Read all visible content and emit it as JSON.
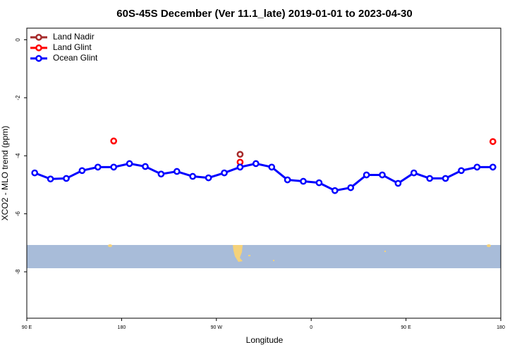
{
  "chart_data": {
    "type": "line",
    "title": "60S-45S December (Ver 11.1_late)   2019-01-01 to 2023-04-30",
    "x_label": "Longitude",
    "y_label": "XCO2 - MLO trend (ppm)",
    "x": [
      97.5,
      112.5,
      127.5,
      142.5,
      157.5,
      172.5,
      187.5,
      202.5,
      217.5,
      232.5,
      247.5,
      262.5,
      277.5,
      292.5,
      307.5,
      322.5,
      337.5,
      352.5,
      367.5,
      382.5,
      397.5,
      412.5,
      427.5,
      442.5,
      457.5,
      472.5,
      487.5,
      502.5,
      517.5,
      532.5
    ],
    "series": [
      {
        "name": "Land Nadir",
        "color": "#a52a2a",
        "values": [
          null,
          null,
          null,
          null,
          null,
          null,
          null,
          null,
          null,
          null,
          null,
          null,
          null,
          -3.95,
          null,
          null,
          null,
          null,
          null,
          null,
          null,
          null,
          null,
          null,
          null,
          null,
          null,
          null,
          null,
          null
        ]
      },
      {
        "name": "Land Glint",
        "color": "#ff0000",
        "values": [
          null,
          null,
          null,
          null,
          null,
          -3.49,
          null,
          null,
          null,
          null,
          null,
          null,
          null,
          -4.22,
          null,
          null,
          null,
          null,
          null,
          null,
          null,
          null,
          null,
          null,
          null,
          null,
          null,
          null,
          null,
          -3.51
        ]
      },
      {
        "name": "Ocean Glint",
        "color": "#0000ff",
        "values": [
          -4.59,
          -4.8,
          -4.78,
          -4.51,
          -4.39,
          -4.39,
          -4.27,
          -4.37,
          -4.63,
          -4.54,
          -4.71,
          -4.76,
          -4.59,
          -4.39,
          -4.27,
          -4.39,
          -4.83,
          -4.88,
          -4.93,
          -5.2,
          -5.1,
          -4.66,
          -4.66,
          -4.95,
          -4.59,
          -4.78,
          -4.78,
          -4.51,
          -4.39,
          -4.39
        ]
      }
    ],
    "xlim": [
      90,
      540
    ],
    "xticks": [
      {
        "value": 90,
        "label": "90 E"
      },
      {
        "value": 180,
        "label": "180"
      },
      {
        "value": 270,
        "label": "90 W"
      },
      {
        "value": 360,
        "label": "0"
      },
      {
        "value": 450,
        "label": "90 E"
      },
      {
        "value": 540,
        "label": "180"
      }
    ],
    "ylim": [
      -9.6,
      0.4
    ],
    "yticks": [
      0,
      -2,
      -4,
      -6,
      -8
    ],
    "legend": "top-left"
  }
}
